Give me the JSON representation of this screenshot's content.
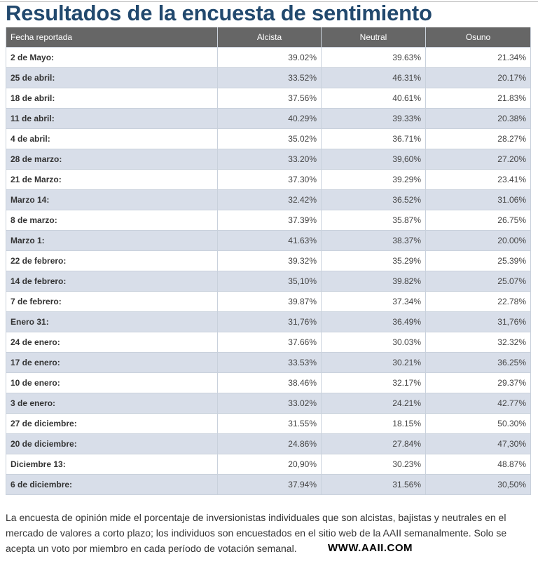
{
  "title": "Resultados de la encuesta de sentimiento",
  "table": {
    "headers": [
      "Fecha reportada",
      "Alcista",
      "Neutral",
      "Osuno"
    ],
    "rows": [
      [
        "2 de Mayo:",
        "39.02%",
        "39.63%",
        "21.34%"
      ],
      [
        "25 de abril:",
        "33.52%",
        "46.31%",
        "20.17%"
      ],
      [
        "18 de abril:",
        "37.56%",
        "40.61%",
        "21.83%"
      ],
      [
        "11 de abril:",
        "40.29%",
        "39.33%",
        "20.38%"
      ],
      [
        "4 de abril:",
        "35.02%",
        "36.71%",
        "28.27%"
      ],
      [
        "28 de marzo:",
        "33.20%",
        "39,60%",
        "27.20%"
      ],
      [
        "21 de Marzo:",
        "37.30%",
        "39.29%",
        "23.41%"
      ],
      [
        "Marzo 14:",
        "32.42%",
        "36.52%",
        "31.06%"
      ],
      [
        "8 de marzo:",
        "37.39%",
        "35.87%",
        "26.75%"
      ],
      [
        "Marzo 1:",
        "41.63%",
        "38.37%",
        "20.00%"
      ],
      [
        "22 de febrero:",
        "39.32%",
        "35.29%",
        "25.39%"
      ],
      [
        "14 de febrero:",
        "35,10%",
        "39.82%",
        "25.07%"
      ],
      [
        "7 de febrero:",
        "39.87%",
        "37.34%",
        "22.78%"
      ],
      [
        "Enero 31:",
        "31,76%",
        "36.49%",
        "31,76%"
      ],
      [
        "24 de enero:",
        "37.66%",
        "30.03%",
        "32.32%"
      ],
      [
        "17 de enero:",
        "33.53%",
        "30.21%",
        "36.25%"
      ],
      [
        "10 de enero:",
        "38.46%",
        "32.17%",
        "29.37%"
      ],
      [
        "3 de enero:",
        "33.02%",
        "24.21%",
        "42.77%"
      ],
      [
        "27 de diciembre:",
        "31.55%",
        "18.15%",
        "50.30%"
      ],
      [
        "20 de diciembre:",
        "24.86%",
        "27.84%",
        "47,30%"
      ],
      [
        "Diciembre 13:",
        "20,90%",
        "30.23%",
        "48.87%"
      ],
      [
        "6 de diciembre:",
        "37.94%",
        "31.56%",
        "30,50%"
      ]
    ]
  },
  "description": "La encuesta de opinión mide el porcentaje de inversionistas individuales que son alcistas, bajistas y neutrales en el mercado de valores a corto plazo; los individuos son encuestados en el sitio web de la AAII semanalmente. Solo se acepta un voto por miembro en cada período de votación semanal.",
  "website": "WWW.AAII.COM",
  "colors": {
    "title": "#22496e",
    "header_bg": "#666666",
    "alt_row": "#d8dee9"
  }
}
